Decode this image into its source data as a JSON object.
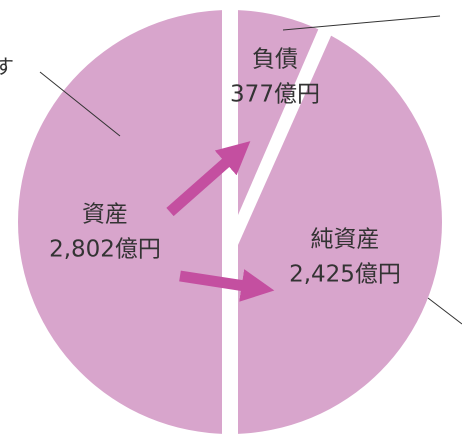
{
  "edge_text": "す",
  "assets": {
    "title": "資産",
    "amount": "2,802億円"
  },
  "liabilities": {
    "title": "負債",
    "amount": "377億円"
  },
  "net_assets": {
    "title": "純資産",
    "amount": "2,425億円"
  }
}
